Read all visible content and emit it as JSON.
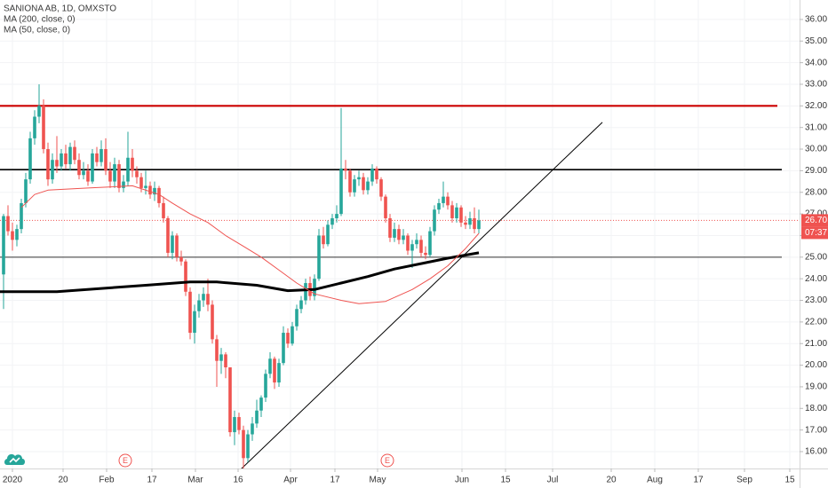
{
  "chart_data": {
    "type": "candlestick",
    "title": "SANIONA AB, 1D, OMXSTO",
    "up_color": "#26a69a",
    "down_color": "#ef5350",
    "x": [
      -2,
      -1,
      0,
      1,
      2,
      3,
      4,
      5,
      6,
      7,
      8,
      9,
      10,
      11,
      12,
      13,
      14,
      15,
      16,
      17,
      18,
      19,
      20,
      21,
      22,
      23,
      24,
      25,
      26,
      27,
      28,
      29,
      30,
      31,
      32,
      33,
      34,
      35,
      36,
      37,
      38,
      39,
      40,
      41,
      42,
      43,
      44,
      45,
      46,
      47,
      48,
      49,
      50,
      51,
      52,
      53,
      54,
      55,
      56,
      57,
      58,
      59,
      60,
      61,
      62,
      63,
      64,
      65,
      66,
      67,
      68,
      69,
      70,
      71,
      72,
      73,
      74,
      75,
      76,
      77,
      78,
      79,
      80,
      81,
      82,
      83,
      84,
      85,
      86,
      87,
      88,
      89,
      90,
      91,
      92,
      93,
      94,
      95,
      96,
      97,
      98,
      99,
      100,
      101,
      102,
      103,
      104,
      105
    ],
    "ohlc": [
      [
        24.2,
        27.0,
        22.6,
        26.9
      ],
      [
        26.9,
        27.4,
        26.0,
        26.2
      ],
      [
        26.2,
        26.6,
        25.3,
        25.8
      ],
      [
        25.8,
        26.5,
        25.5,
        26.3
      ],
      [
        26.3,
        27.7,
        26.1,
        27.5
      ],
      [
        27.5,
        28.9,
        27.3,
        28.6
      ],
      [
        28.6,
        30.8,
        28.4,
        30.5
      ],
      [
        30.5,
        31.8,
        30.2,
        31.5
      ],
      [
        31.5,
        33.0,
        31.2,
        32.0
      ],
      [
        32.0,
        32.3,
        29.8,
        30.0
      ],
      [
        30.0,
        30.3,
        28.3,
        28.6
      ],
      [
        28.6,
        29.8,
        28.4,
        29.5
      ],
      [
        29.5,
        30.6,
        28.9,
        29.2
      ],
      [
        29.2,
        30.0,
        29.0,
        29.8
      ],
      [
        29.8,
        30.2,
        29.1,
        29.3
      ],
      [
        29.3,
        30.3,
        29.0,
        30.1
      ],
      [
        30.1,
        30.4,
        29.3,
        29.5
      ],
      [
        29.5,
        29.8,
        28.6,
        28.8
      ],
      [
        28.8,
        29.4,
        28.6,
        29.0
      ],
      [
        29.0,
        29.3,
        28.3,
        28.5
      ],
      [
        28.5,
        30.0,
        28.4,
        29.8
      ],
      [
        29.8,
        30.1,
        29.2,
        29.4
      ],
      [
        29.4,
        30.4,
        29.2,
        30.0
      ],
      [
        30.0,
        30.5,
        28.8,
        29.0
      ],
      [
        29.0,
        29.4,
        28.2,
        28.5
      ],
      [
        28.5,
        29.6,
        28.2,
        29.3
      ],
      [
        29.3,
        29.5,
        28.0,
        28.2
      ],
      [
        28.2,
        28.8,
        28.0,
        28.5
      ],
      [
        28.5,
        30.8,
        28.3,
        29.6
      ],
      [
        29.6,
        30.0,
        28.7,
        29.0
      ],
      [
        29.0,
        29.2,
        28.4,
        28.7
      ],
      [
        28.7,
        28.9,
        28.0,
        28.2
      ],
      [
        28.2,
        29.0,
        27.9,
        28.3
      ],
      [
        28.3,
        28.5,
        27.7,
        27.9
      ],
      [
        27.9,
        28.5,
        27.6,
        28.2
      ],
      [
        28.2,
        28.3,
        27.3,
        27.5
      ],
      [
        27.5,
        27.8,
        26.6,
        26.8
      ],
      [
        26.8,
        26.9,
        25.0,
        25.2
      ],
      [
        25.2,
        26.2,
        24.9,
        26.0
      ],
      [
        26.0,
        26.1,
        24.8,
        25.0
      ],
      [
        25.0,
        25.3,
        24.6,
        24.8
      ],
      [
        24.8,
        24.9,
        23.2,
        23.4
      ],
      [
        23.4,
        23.6,
        21.2,
        21.5
      ],
      [
        21.5,
        22.8,
        21.0,
        22.5
      ],
      [
        22.5,
        23.3,
        22.2,
        23.0
      ],
      [
        23.0,
        23.6,
        22.7,
        23.3
      ],
      [
        23.3,
        24.0,
        22.5,
        22.8
      ],
      [
        22.8,
        23.0,
        21.0,
        21.2
      ],
      [
        21.2,
        21.4,
        19.0,
        20.2
      ],
      [
        20.2,
        20.8,
        19.6,
        20.5
      ],
      [
        20.5,
        20.6,
        19.4,
        19.9
      ],
      [
        19.9,
        19.9,
        16.7,
        16.9
      ],
      [
        16.9,
        17.9,
        16.3,
        17.6
      ],
      [
        17.6,
        17.8,
        16.8,
        17.0
      ],
      [
        17.0,
        17.2,
        15.2,
        15.7
      ],
      [
        15.7,
        17.0,
        15.5,
        16.8
      ],
      [
        16.8,
        17.6,
        16.5,
        17.3
      ],
      [
        17.3,
        18.4,
        17.1,
        17.9
      ],
      [
        17.9,
        18.6,
        17.6,
        18.5
      ],
      [
        18.5,
        19.8,
        18.3,
        19.6
      ],
      [
        19.6,
        20.6,
        19.4,
        20.3
      ],
      [
        20.3,
        20.4,
        18.9,
        19.2
      ],
      [
        19.2,
        20.3,
        19.0,
        20.1
      ],
      [
        20.1,
        21.8,
        20.0,
        21.5
      ],
      [
        21.5,
        21.7,
        20.8,
        21.0
      ],
      [
        21.0,
        22.0,
        20.9,
        21.8
      ],
      [
        21.8,
        22.8,
        21.6,
        22.6
      ],
      [
        22.6,
        23.2,
        22.4,
        23.0
      ],
      [
        23.0,
        24.0,
        22.8,
        23.8
      ],
      [
        23.8,
        24.1,
        23.0,
        23.2
      ],
      [
        23.2,
        24.2,
        23.0,
        24.0
      ],
      [
        24.0,
        26.3,
        23.9,
        26.0
      ],
      [
        26.0,
        26.4,
        25.4,
        25.6
      ],
      [
        25.6,
        26.7,
        25.5,
        26.5
      ],
      [
        26.5,
        27.0,
        26.3,
        26.8
      ],
      [
        26.8,
        27.4,
        26.6,
        27.0
      ],
      [
        27.0,
        31.9,
        26.9,
        29.1
      ],
      [
        29.1,
        29.5,
        28.6,
        29.0
      ],
      [
        29.0,
        29.1,
        27.8,
        28.0
      ],
      [
        28.0,
        28.8,
        27.8,
        28.6
      ],
      [
        28.6,
        29.0,
        28.3,
        28.7
      ],
      [
        28.7,
        28.9,
        27.9,
        28.1
      ],
      [
        28.1,
        28.7,
        27.9,
        28.5
      ],
      [
        28.5,
        29.3,
        28.3,
        29.1
      ],
      [
        29.1,
        29.2,
        28.4,
        28.6
      ],
      [
        28.6,
        28.7,
        27.6,
        27.8
      ],
      [
        27.8,
        27.9,
        26.6,
        26.8
      ],
      [
        26.8,
        27.0,
        25.7,
        25.9
      ],
      [
        25.9,
        26.6,
        25.7,
        26.3
      ],
      [
        26.3,
        26.5,
        25.6,
        25.8
      ],
      [
        25.8,
        26.3,
        25.6,
        26.0
      ],
      [
        26.0,
        26.1,
        25.1,
        25.3
      ],
      [
        25.3,
        25.8,
        24.5,
        25.6
      ],
      [
        25.6,
        26.1,
        25.4,
        25.8
      ],
      [
        25.8,
        26.0,
        25.0,
        25.2
      ],
      [
        25.2,
        25.5,
        24.9,
        25.1
      ],
      [
        25.1,
        26.4,
        25.0,
        26.2
      ],
      [
        26.2,
        27.4,
        26.0,
        27.2
      ],
      [
        27.2,
        27.7,
        27.0,
        27.5
      ],
      [
        27.5,
        28.5,
        27.3,
        27.8
      ],
      [
        27.8,
        28.0,
        27.2,
        27.4
      ],
      [
        27.4,
        27.6,
        26.6,
        26.8
      ],
      [
        26.8,
        27.5,
        26.6,
        27.3
      ],
      [
        27.3,
        27.4,
        26.4,
        26.6
      ],
      [
        26.6,
        26.9,
        26.3,
        26.5
      ],
      [
        26.5,
        27.1,
        26.3,
        26.8
      ],
      [
        26.8,
        27.3,
        26.1,
        26.3
      ],
      [
        26.3,
        27.2,
        26.1,
        26.7
      ]
    ],
    "series": [
      {
        "name": "MA (200, close, 0)",
        "color": "#000000",
        "x": [
          -2.8,
          10,
          20,
          30,
          40,
          46,
          55,
          62,
          68,
          74,
          80,
          86,
          92,
          98,
          105
        ],
        "values": [
          23.4,
          23.4,
          23.55,
          23.7,
          23.85,
          23.85,
          23.7,
          23.45,
          23.5,
          23.8,
          24.1,
          24.45,
          24.7,
          24.95,
          25.2
        ]
      },
      {
        "name": "MA (50, close, 0)",
        "color": "#ef5350",
        "x": [
          2,
          5,
          8,
          17,
          27,
          33,
          36,
          40,
          44,
          48,
          52,
          56,
          60,
          64,
          68,
          74,
          78,
          84,
          90,
          94,
          98,
          102,
          105
        ],
        "values": [
          27.3,
          27.9,
          28.1,
          28.2,
          28.3,
          27.9,
          27.5,
          27.0,
          26.6,
          26.0,
          25.5,
          25.0,
          24.4,
          23.8,
          23.3,
          23.0,
          22.85,
          22.95,
          23.5,
          24.0,
          24.6,
          25.4,
          26.1
        ]
      }
    ],
    "hlines": [
      {
        "value": 32.0,
        "color": "#cc0000",
        "x": [
          -2.8,
          172.2
        ]
      },
      {
        "value": 29.05,
        "color": "#000000",
        "x": [
          -2.8,
          173.2
        ]
      },
      {
        "value": 25.0,
        "color": "#333333",
        "x": [
          -2.8,
          173.2
        ]
      }
    ],
    "trendline": {
      "color": "#000000",
      "x": [
        51.2,
        132.8
      ],
      "values": [
        15.14,
        31.24
      ]
    },
    "last_price": {
      "value": 26.7,
      "label": "26.70",
      "color": "#ef5350"
    },
    "countdown": "07:37",
    "earnings": {
      "x": [
        25.4,
        84.4
      ],
      "label": "E",
      "color": "#ef5350"
    },
    "xlim": [
      -2.8,
      177.2
    ],
    "ylim": [
      15.22,
      36.9
    ],
    "xticks": [
      {
        "value": 0,
        "label": "2020"
      },
      {
        "value": 11.4,
        "label": "20"
      },
      {
        "value": 21.2,
        "label": "Feb"
      },
      {
        "value": 31.4,
        "label": "17"
      },
      {
        "value": 41.2,
        "label": "Mar"
      },
      {
        "value": 50.8,
        "label": "16"
      },
      {
        "value": 62.6,
        "label": "Apr"
      },
      {
        "value": 72.6,
        "label": "17"
      },
      {
        "value": 82.2,
        "label": "May"
      },
      {
        "value": 101.2,
        "label": "Jun"
      },
      {
        "value": 111,
        "label": "15"
      },
      {
        "value": 121.6,
        "label": "Jul"
      },
      {
        "value": 134.8,
        "label": "20"
      },
      {
        "value": 144.6,
        "label": "Aug"
      },
      {
        "value": 154.4,
        "label": "17"
      },
      {
        "value": 164.8,
        "label": "Sep"
      },
      {
        "value": 175,
        "label": "15"
      }
    ],
    "yticks": [
      {
        "value": 16,
        "label": "16.00"
      },
      {
        "value": 17,
        "label": "17.00"
      },
      {
        "value": 18,
        "label": "18.00"
      },
      {
        "value": 19,
        "label": "19.00"
      },
      {
        "value": 20,
        "label": "20.00"
      },
      {
        "value": 21,
        "label": "21.00"
      },
      {
        "value": 22,
        "label": "22.00"
      },
      {
        "value": 23,
        "label": "23.00"
      },
      {
        "value": 24,
        "label": "24.00"
      },
      {
        "value": 25,
        "label": "25.00"
      },
      {
        "value": 26,
        "label": "26.00"
      },
      {
        "value": 27,
        "label": "27.00"
      },
      {
        "value": 28,
        "label": "28.00"
      },
      {
        "value": 29,
        "label": "29.00"
      },
      {
        "value": 30,
        "label": "30.00"
      },
      {
        "value": 31,
        "label": "31.00"
      },
      {
        "value": 32,
        "label": "32.00"
      },
      {
        "value": 33,
        "label": "33.00"
      },
      {
        "value": 34,
        "label": "34.00"
      },
      {
        "value": 35,
        "label": "35.00"
      },
      {
        "value": 36,
        "label": "36.00"
      }
    ],
    "grid": true
  }
}
